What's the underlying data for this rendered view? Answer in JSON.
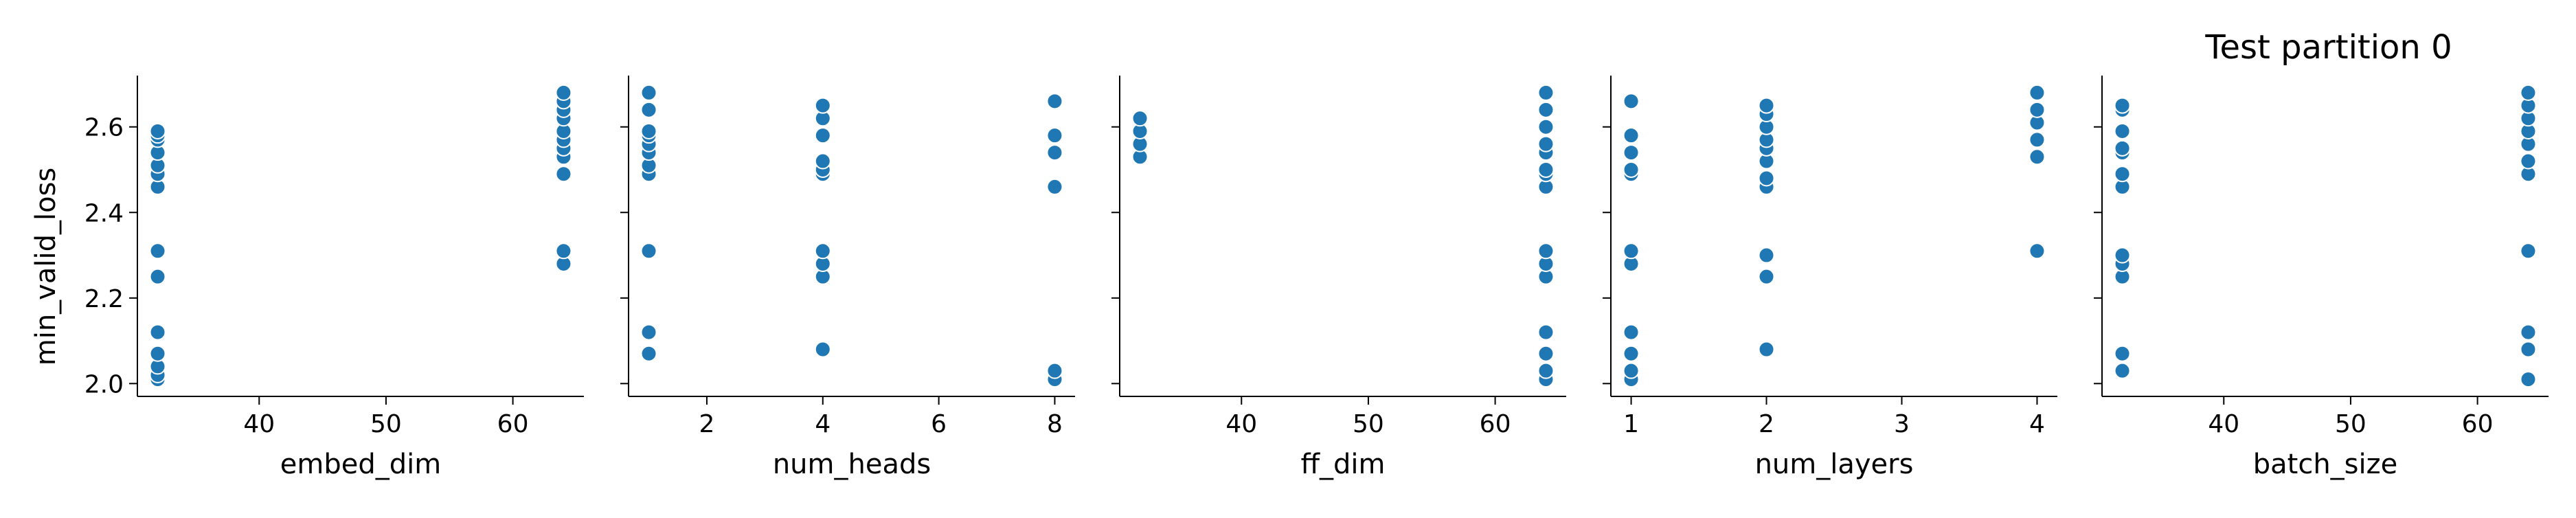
{
  "figure": {
    "title": "Test partition 0",
    "ylabel": "min_valid_loss",
    "marker_color": "#1f77b4",
    "marker_edge": "#ffffff"
  },
  "chart_data": {
    "type": "scatter",
    "ylabel": "min_valid_loss",
    "ylim": [
      1.97,
      2.72
    ],
    "yticks": [
      2.0,
      2.2,
      2.4,
      2.6
    ],
    "ytick_labels": [
      "2.0",
      "2.2",
      "2.4",
      "2.6"
    ],
    "grid": false,
    "legend": "none",
    "panels": [
      {
        "xlabel": "embed_dim",
        "xlim": [
          30.4,
          65.6
        ],
        "xticks": [
          40,
          50,
          60
        ],
        "xtick_labels": [
          "40",
          "50",
          "60"
        ],
        "points": [
          [
            32,
            2.01
          ],
          [
            32,
            2.02
          ],
          [
            32,
            2.04
          ],
          [
            32,
            2.07
          ],
          [
            32,
            2.12
          ],
          [
            32,
            2.25
          ],
          [
            32,
            2.31
          ],
          [
            32,
            2.46
          ],
          [
            32,
            2.49
          ],
          [
            32,
            2.51
          ],
          [
            32,
            2.54
          ],
          [
            32,
            2.57
          ],
          [
            32,
            2.58
          ],
          [
            32,
            2.59
          ],
          [
            64,
            2.28
          ],
          [
            64,
            2.31
          ],
          [
            64,
            2.49
          ],
          [
            64,
            2.53
          ],
          [
            64,
            2.55
          ],
          [
            64,
            2.57
          ],
          [
            64,
            2.59
          ],
          [
            64,
            2.62
          ],
          [
            64,
            2.64
          ],
          [
            64,
            2.66
          ],
          [
            64,
            2.68
          ]
        ]
      },
      {
        "xlabel": "num_heads",
        "xlim": [
          0.65,
          8.35
        ],
        "xticks": [
          2,
          4,
          6,
          8
        ],
        "xtick_labels": [
          "2",
          "4",
          "6",
          "8"
        ],
        "points": [
          [
            1,
            2.07
          ],
          [
            1,
            2.12
          ],
          [
            1,
            2.31
          ],
          [
            1,
            2.49
          ],
          [
            1,
            2.51
          ],
          [
            1,
            2.54
          ],
          [
            1,
            2.56
          ],
          [
            1,
            2.58
          ],
          [
            1,
            2.59
          ],
          [
            1,
            2.64
          ],
          [
            1,
            2.68
          ],
          [
            4,
            2.08
          ],
          [
            4,
            2.25
          ],
          [
            4,
            2.28
          ],
          [
            4,
            2.31
          ],
          [
            4,
            2.49
          ],
          [
            4,
            2.5
          ],
          [
            4,
            2.52
          ],
          [
            4,
            2.58
          ],
          [
            4,
            2.62
          ],
          [
            4,
            2.65
          ],
          [
            8,
            2.01
          ],
          [
            8,
            2.03
          ],
          [
            8,
            2.46
          ],
          [
            8,
            2.54
          ],
          [
            8,
            2.58
          ],
          [
            8,
            2.66
          ]
        ]
      },
      {
        "xlabel": "ff_dim",
        "xlim": [
          30.4,
          65.6
        ],
        "xticks": [
          40,
          50,
          60
        ],
        "xtick_labels": [
          "40",
          "50",
          "60"
        ],
        "points": [
          [
            32,
            2.53
          ],
          [
            32,
            2.56
          ],
          [
            32,
            2.59
          ],
          [
            32,
            2.62
          ],
          [
            64,
            2.01
          ],
          [
            64,
            2.03
          ],
          [
            64,
            2.07
          ],
          [
            64,
            2.12
          ],
          [
            64,
            2.25
          ],
          [
            64,
            2.28
          ],
          [
            64,
            2.31
          ],
          [
            64,
            2.46
          ],
          [
            64,
            2.49
          ],
          [
            64,
            2.5
          ],
          [
            64,
            2.54
          ],
          [
            64,
            2.56
          ],
          [
            64,
            2.6
          ],
          [
            64,
            2.64
          ],
          [
            64,
            2.68
          ]
        ]
      },
      {
        "xlabel": "num_layers",
        "xlim": [
          0.85,
          4.15
        ],
        "xticks": [
          1,
          2,
          3,
          4
        ],
        "xtick_labels": [
          "1",
          "2",
          "3",
          "4"
        ],
        "points": [
          [
            1,
            2.01
          ],
          [
            1,
            2.03
          ],
          [
            1,
            2.07
          ],
          [
            1,
            2.12
          ],
          [
            1,
            2.28
          ],
          [
            1,
            2.31
          ],
          [
            1,
            2.49
          ],
          [
            1,
            2.5
          ],
          [
            1,
            2.54
          ],
          [
            1,
            2.58
          ],
          [
            1,
            2.66
          ],
          [
            2,
            2.08
          ],
          [
            2,
            2.25
          ],
          [
            2,
            2.3
          ],
          [
            2,
            2.46
          ],
          [
            2,
            2.48
          ],
          [
            2,
            2.52
          ],
          [
            2,
            2.55
          ],
          [
            2,
            2.57
          ],
          [
            2,
            2.6
          ],
          [
            2,
            2.63
          ],
          [
            2,
            2.65
          ],
          [
            4,
            2.31
          ],
          [
            4,
            2.53
          ],
          [
            4,
            2.57
          ],
          [
            4,
            2.61
          ],
          [
            4,
            2.64
          ],
          [
            4,
            2.68
          ]
        ]
      },
      {
        "xlabel": "batch_size",
        "xlim": [
          30.4,
          65.6
        ],
        "xticks": [
          40,
          50,
          60
        ],
        "xtick_labels": [
          "40",
          "50",
          "60"
        ],
        "points": [
          [
            32,
            2.03
          ],
          [
            32,
            2.07
          ],
          [
            32,
            2.25
          ],
          [
            32,
            2.28
          ],
          [
            32,
            2.3
          ],
          [
            32,
            2.46
          ],
          [
            32,
            2.49
          ],
          [
            32,
            2.54
          ],
          [
            32,
            2.55
          ],
          [
            32,
            2.59
          ],
          [
            32,
            2.64
          ],
          [
            32,
            2.65
          ],
          [
            64,
            2.01
          ],
          [
            64,
            2.08
          ],
          [
            64,
            2.12
          ],
          [
            64,
            2.31
          ],
          [
            64,
            2.49
          ],
          [
            64,
            2.52
          ],
          [
            64,
            2.56
          ],
          [
            64,
            2.59
          ],
          [
            64,
            2.62
          ],
          [
            64,
            2.65
          ],
          [
            64,
            2.68
          ]
        ]
      }
    ]
  }
}
